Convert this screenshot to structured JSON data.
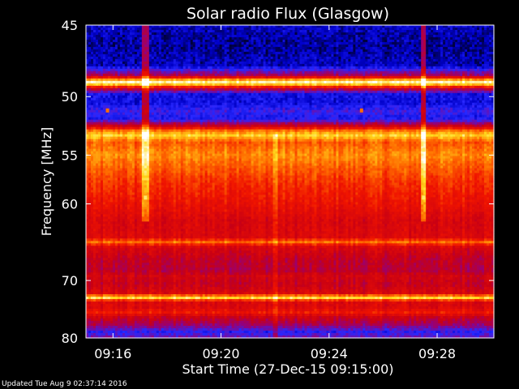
{
  "chart_data": {
    "type": "heatmap",
    "title": "Solar radio Flux (Glasgow)",
    "xlabel": "Start Time (27-Dec-15 09:15:00)",
    "ylabel": "Frequency [MHz]",
    "x_ticks": [
      "09:16",
      "09:20",
      "09:24",
      "09:28"
    ],
    "x_tick_minutes": [
      16,
      20,
      24,
      28
    ],
    "xlim_minutes": [
      15.0,
      30.1
    ],
    "y_ticks": [
      45,
      50,
      55,
      60,
      70,
      80
    ],
    "ylim": [
      80,
      45
    ],
    "y_axis": "reciprocal",
    "grid": false,
    "colormap": "blue-red-yellow-white",
    "frequency_profile": [
      {
        "mhz": 45.0,
        "level": 0.07
      },
      {
        "mhz": 45.5,
        "level": 0.05
      },
      {
        "mhz": 46.4,
        "level": 0.04
      },
      {
        "mhz": 47.7,
        "level": 0.06
      },
      {
        "mhz": 48.4,
        "level": 0.3
      },
      {
        "mhz": 48.7,
        "level": 0.75
      },
      {
        "mhz": 48.9,
        "level": 0.95
      },
      {
        "mhz": 49.1,
        "level": 0.8
      },
      {
        "mhz": 49.4,
        "level": 0.35
      },
      {
        "mhz": 49.8,
        "level": 0.1
      },
      {
        "mhz": 50.5,
        "level": 0.09
      },
      {
        "mhz": 51.2,
        "level": 0.16
      },
      {
        "mhz": 51.7,
        "level": 0.11
      },
      {
        "mhz": 52.0,
        "level": 0.2
      },
      {
        "mhz": 52.4,
        "level": 0.4
      },
      {
        "mhz": 52.8,
        "level": 0.7
      },
      {
        "mhz": 53.2,
        "level": 0.85
      },
      {
        "mhz": 53.8,
        "level": 0.66
      },
      {
        "mhz": 55.0,
        "level": 0.74
      },
      {
        "mhz": 56.0,
        "level": 0.68
      },
      {
        "mhz": 57.5,
        "level": 0.6
      },
      {
        "mhz": 59.0,
        "level": 0.55
      },
      {
        "mhz": 60.5,
        "level": 0.5
      },
      {
        "mhz": 62.0,
        "level": 0.44
      },
      {
        "mhz": 64.0,
        "level": 0.46
      },
      {
        "mhz": 64.6,
        "level": 0.7
      },
      {
        "mhz": 65.2,
        "level": 0.45
      },
      {
        "mhz": 67.0,
        "level": 0.36
      },
      {
        "mhz": 68.5,
        "level": 0.34
      },
      {
        "mhz": 69.3,
        "level": 0.42
      },
      {
        "mhz": 70.5,
        "level": 0.38
      },
      {
        "mhz": 72.0,
        "level": 0.45
      },
      {
        "mhz": 72.7,
        "level": 0.9
      },
      {
        "mhz": 73.4,
        "level": 0.45
      },
      {
        "mhz": 74.5,
        "level": 0.46
      },
      {
        "mhz": 75.2,
        "level": 0.55
      },
      {
        "mhz": 76.0,
        "level": 0.4
      },
      {
        "mhz": 77.5,
        "level": 0.28
      },
      {
        "mhz": 78.8,
        "level": 0.14
      },
      {
        "mhz": 80.0,
        "level": 0.22
      }
    ],
    "bursts": [
      {
        "minute": 17.2,
        "mhz_from": 45,
        "mhz_to": 62,
        "boost": 0.25
      },
      {
        "minute": 27.5,
        "mhz_from": 45,
        "mhz_to": 62,
        "boost": 0.25
      },
      {
        "minute": 22.0,
        "mhz_from": 53,
        "mhz_to": 80,
        "boost": 0.1
      }
    ],
    "hot_spots": [
      {
        "minute": 15.8,
        "mhz": 51.1,
        "level": 0.7
      },
      {
        "minute": 25.2,
        "mhz": 51.1,
        "level": 0.7
      },
      {
        "minute": 17.2,
        "mhz": 54.5,
        "level": 0.9
      },
      {
        "minute": 17.2,
        "mhz": 59.3,
        "level": 0.9
      },
      {
        "minute": 27.5,
        "mhz": 54.5,
        "level": 0.9
      },
      {
        "minute": 27.5,
        "mhz": 59.3,
        "level": 0.9
      }
    ]
  },
  "footer": {
    "updated": "Updated Tue Aug  9 02:37:14 2016"
  },
  "colors": {
    "background": "#000000",
    "text": "#ffffff",
    "low": "#0000c8",
    "mid": "#dc0000",
    "high": "#ffffff"
  }
}
